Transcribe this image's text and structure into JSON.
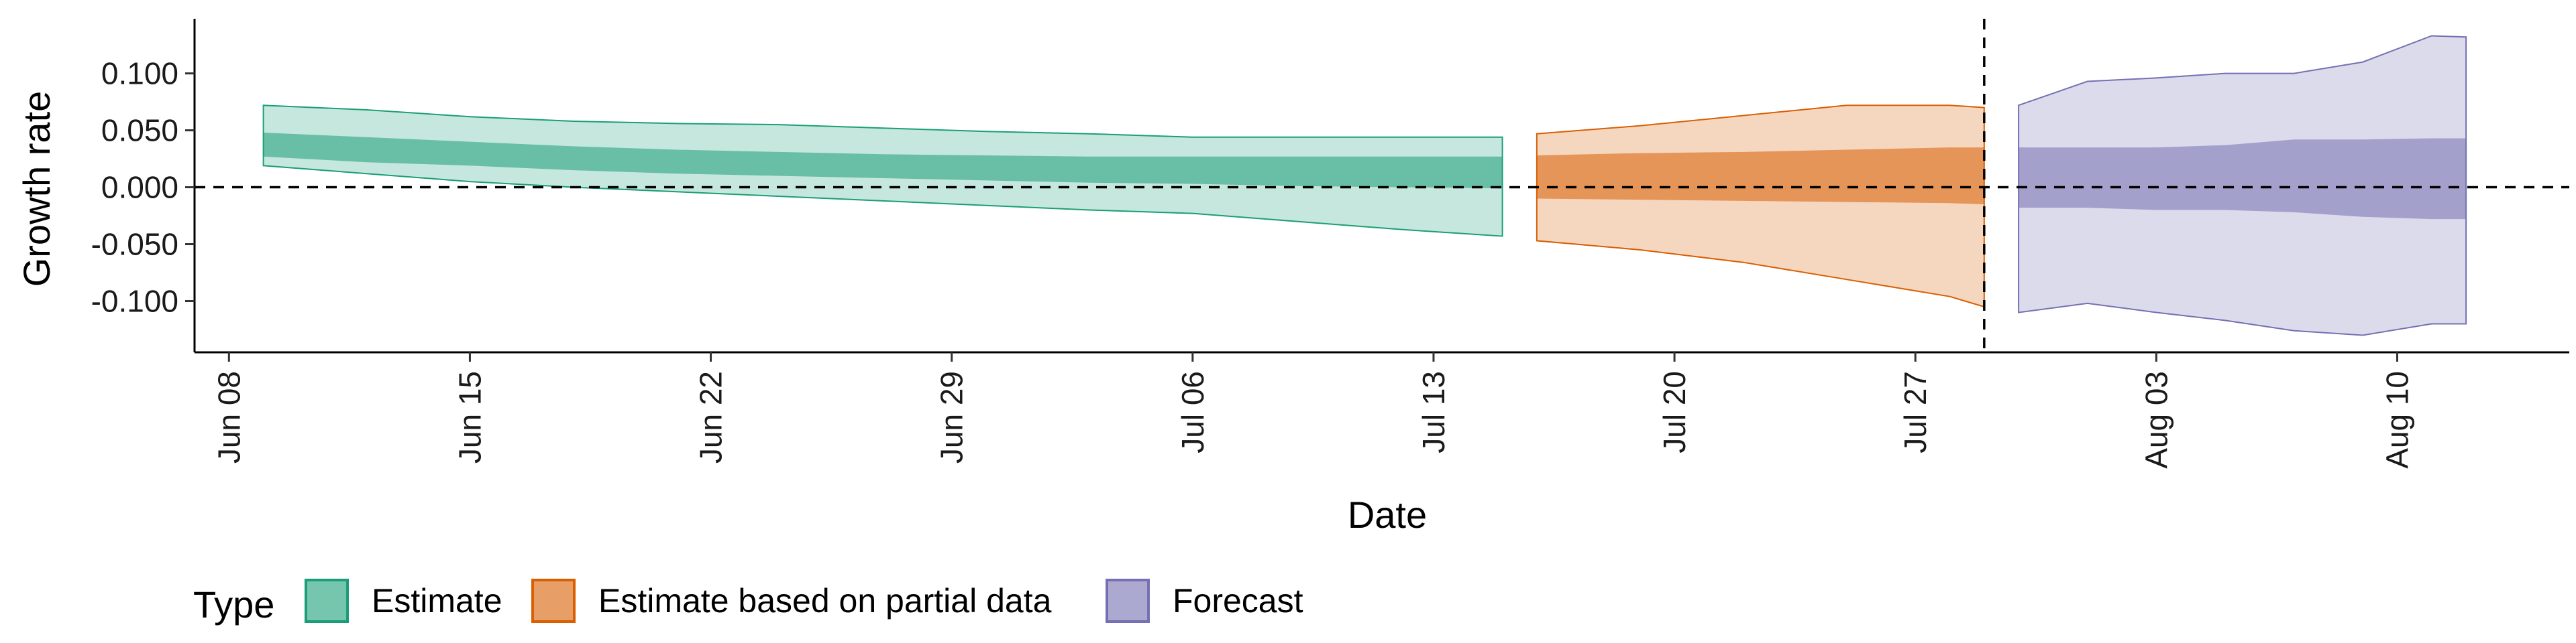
{
  "chart_data": {
    "type": "area",
    "xlabel": "Date",
    "ylabel": "Growth rate",
    "x_ticks": [
      "Jun 08",
      "Jun 15",
      "Jun 22",
      "Jun 29",
      "Jul 06",
      "Jul 13",
      "Jul 20",
      "Jul 27",
      "Aug 03",
      "Aug 10"
    ],
    "y_ticks": [
      "0.100",
      "0.050",
      "0.000",
      "-0.050",
      "-0.100"
    ],
    "y_tick_values": [
      0.1,
      0.05,
      0.0,
      -0.05,
      -0.1
    ],
    "xlim": [
      "2020-06-07",
      "2020-08-15"
    ],
    "ylim": [
      -0.145,
      0.148
    ],
    "reference_lines": {
      "horizontal_y": 0.0,
      "vertical_date": "2020-07-29",
      "style": "dashed"
    },
    "grid": false,
    "legend": {
      "title": "Type",
      "placement": "bottom-left",
      "entries": [
        {
          "label": "Estimate",
          "color": "#1b9e77"
        },
        {
          "label": "Estimate based on partial data",
          "color": "#d95f02"
        },
        {
          "label": "Forecast",
          "color": "#7570b3"
        }
      ]
    },
    "series": [
      {
        "name": "Estimate",
        "color": "#1b9e77",
        "dates": [
          "2020-06-09",
          "2020-06-12",
          "2020-06-15",
          "2020-06-18",
          "2020-06-21",
          "2020-06-24",
          "2020-06-27",
          "2020-06-30",
          "2020-07-03",
          "2020-07-06",
          "2020-07-09",
          "2020-07-12",
          "2020-07-15"
        ],
        "outer_upper": [
          0.072,
          0.068,
          0.062,
          0.058,
          0.056,
          0.055,
          0.052,
          0.049,
          0.047,
          0.044,
          0.044,
          0.044,
          0.044
        ],
        "inner_upper": [
          0.048,
          0.044,
          0.04,
          0.036,
          0.033,
          0.031,
          0.029,
          0.028,
          0.027,
          0.027,
          0.027,
          0.027,
          0.027
        ],
        "inner_lower": [
          0.027,
          0.022,
          0.019,
          0.015,
          0.012,
          0.01,
          0.008,
          0.006,
          0.004,
          0.003,
          0.001,
          0.0,
          -0.001
        ],
        "outer_lower": [
          0.019,
          0.012,
          0.005,
          0.0,
          -0.004,
          -0.008,
          -0.012,
          -0.016,
          -0.02,
          -0.023,
          -0.03,
          -0.037,
          -0.043
        ]
      },
      {
        "name": "Estimate based on partial data",
        "color": "#d95f02",
        "dates": [
          "2020-07-16",
          "2020-07-19",
          "2020-07-22",
          "2020-07-25",
          "2020-07-28",
          "2020-07-29"
        ],
        "outer_upper": [
          0.047,
          0.054,
          0.063,
          0.072,
          0.072,
          0.07
        ],
        "inner_upper": [
          0.028,
          0.03,
          0.031,
          0.033,
          0.035,
          0.035
        ],
        "inner_lower": [
          -0.01,
          -0.011,
          -0.012,
          -0.013,
          -0.014,
          -0.015
        ],
        "outer_lower": [
          -0.047,
          -0.055,
          -0.066,
          -0.081,
          -0.096,
          -0.105
        ]
      },
      {
        "name": "Forecast",
        "color": "#7570b3",
        "dates": [
          "2020-07-30",
          "2020-08-01",
          "2020-08-03",
          "2020-08-05",
          "2020-08-07",
          "2020-08-09",
          "2020-08-11",
          "2020-08-12"
        ],
        "outer_upper": [
          0.072,
          0.093,
          0.096,
          0.1,
          0.1,
          0.11,
          0.133,
          0.132
        ],
        "inner_upper": [
          0.035,
          0.035,
          0.035,
          0.037,
          0.042,
          0.042,
          0.043,
          0.043
        ],
        "inner_lower": [
          -0.018,
          -0.018,
          -0.02,
          -0.02,
          -0.022,
          -0.026,
          -0.028,
          -0.028
        ],
        "outer_lower": [
          -0.11,
          -0.102,
          -0.11,
          -0.117,
          -0.126,
          -0.13,
          -0.12,
          -0.12
        ]
      }
    ]
  }
}
